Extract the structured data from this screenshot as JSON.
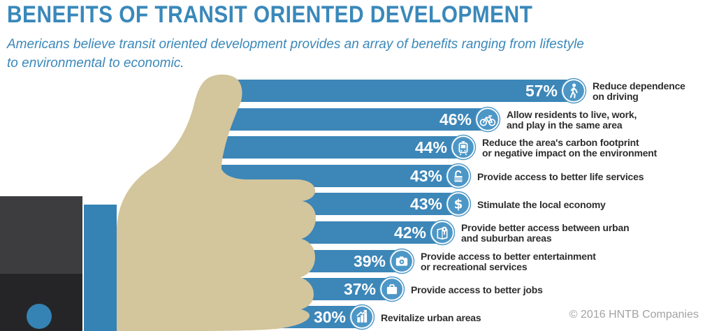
{
  "title": "BENEFITS OF TRANSIT ORIENTED DEVELOPMENT",
  "subtitle_lines": [
    "Americans believe transit oriented development provides an array of benefits ranging from lifestyle",
    "to environmental to economic."
  ],
  "copyright": "© 2016 HNTB Companies",
  "colors": {
    "heading_blue": "#3a88ba",
    "bar_blue": "#3c86b8",
    "icon_circle_blue": "#4d97c7",
    "label_gray": "#2e2e2e",
    "copyright_gray": "#a3a3a3",
    "hand_tan": "#d3c59c",
    "sleeve_dark": "#3d3d40",
    "sleeve_darker": "#252527",
    "cuff_blue": "#3583b5"
  },
  "chart_data": {
    "type": "bar",
    "orientation": "horizontal",
    "unit": "percent",
    "title": "BENEFITS OF TRANSIT ORIENTED DEVELOPMENT",
    "legend": "none",
    "grid": false,
    "categories": [
      "Reduce dependence on driving",
      "Allow residents to live, work, and play in the same area",
      "Reduce the area's carbon footprint or negative impact on the environment",
      "Provide access to better life services",
      "Stimulate the local economy",
      "Provide better access between urban and suburban areas",
      "Provide access to better entertainment or recreational services",
      "Provide access to better jobs",
      "Revitalize urban areas"
    ],
    "values": [
      57,
      46,
      44,
      43,
      43,
      42,
      39,
      37,
      30
    ],
    "rows": [
      {
        "value_label": "57%",
        "icon": "pedestrian-icon",
        "lines": [
          "Reduce dependence",
          "on driving"
        ]
      },
      {
        "value_label": "46%",
        "icon": "bicycle-icon",
        "lines": [
          "Allow residents to live, work,",
          "and play in the same area"
        ]
      },
      {
        "value_label": "44%",
        "icon": "tram-icon",
        "lines": [
          "Reduce the area's carbon footprint",
          "or negative impact on the environment"
        ]
      },
      {
        "value_label": "43%",
        "icon": "open-lock-icon",
        "lines": [
          "Provide access to better life services"
        ]
      },
      {
        "value_label": "43%",
        "icon": "dollar-icon",
        "lines": [
          "Stimulate the local economy"
        ]
      },
      {
        "value_label": "42%",
        "icon": "map-pin-icon",
        "lines": [
          "Provide better access between urban",
          "and suburban areas"
        ]
      },
      {
        "value_label": "39%",
        "icon": "camera-icon",
        "lines": [
          "Provide access to better entertainment",
          "or recreational services"
        ]
      },
      {
        "value_label": "37%",
        "icon": "briefcase-icon",
        "lines": [
          "Provide access to better jobs"
        ]
      },
      {
        "value_label": "30%",
        "icon": "urban-growth-icon",
        "lines": [
          "Revitalize urban areas"
        ]
      }
    ],
    "source": "© 2016 HNTB Companies"
  }
}
